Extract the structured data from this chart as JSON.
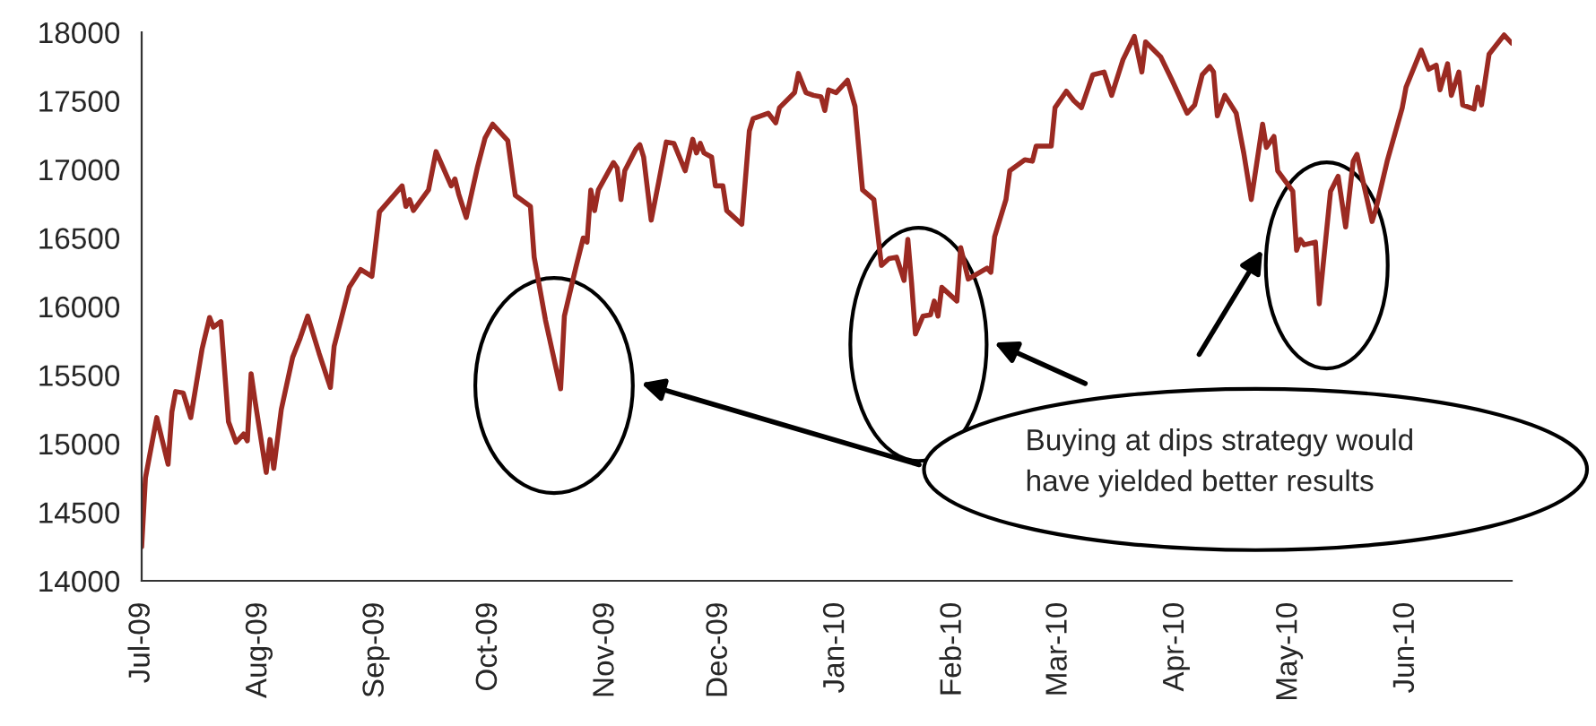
{
  "chart_data": {
    "type": "line",
    "x": [
      "2009-07-01",
      "2009-07-02",
      "2009-07-05",
      "2009-07-08",
      "2009-07-09",
      "2009-07-10",
      "2009-07-12",
      "2009-07-14",
      "2009-07-17",
      "2009-07-19",
      "2009-07-20",
      "2009-07-22",
      "2009-07-24",
      "2009-07-26",
      "2009-07-28",
      "2009-07-29",
      "2009-07-30",
      "2009-07-31",
      "2009-08-03",
      "2009-08-04",
      "2009-08-05",
      "2009-08-07",
      "2009-08-10",
      "2009-08-12",
      "2009-08-14",
      "2009-08-17",
      "2009-08-20",
      "2009-08-21",
      "2009-08-25",
      "2009-08-28",
      "2009-08-31",
      "2009-09-02",
      "2009-09-08",
      "2009-09-09",
      "2009-09-10",
      "2009-09-11",
      "2009-09-15",
      "2009-09-17",
      "2009-09-21",
      "2009-09-22",
      "2009-09-23",
      "2009-09-25",
      "2009-09-28",
      "2009-09-30",
      "2009-10-02",
      "2009-10-06",
      "2009-10-08",
      "2009-10-12",
      "2009-10-13",
      "2009-10-16",
      "2009-10-20",
      "2009-10-21",
      "2009-10-24",
      "2009-10-26",
      "2009-10-27",
      "2009-10-28",
      "2009-10-29",
      "2009-10-30",
      "2009-11-03",
      "2009-11-04",
      "2009-11-05",
      "2009-11-06",
      "2009-11-09",
      "2009-11-10",
      "2009-11-11",
      "2009-11-13",
      "2009-11-15",
      "2009-11-17",
      "2009-11-19",
      "2009-11-22",
      "2009-11-24",
      "2009-11-25",
      "2009-11-26",
      "2009-11-27",
      "2009-11-29",
      "2009-11-30",
      "2009-12-02",
      "2009-12-03",
      "2009-12-07",
      "2009-12-09",
      "2009-12-10",
      "2009-12-14",
      "2009-12-16",
      "2009-12-17",
      "2009-12-21",
      "2009-12-22",
      "2009-12-24",
      "2009-12-26",
      "2009-12-28",
      "2009-12-29",
      "2009-12-30",
      "2010-01-01",
      "2010-01-04",
      "2010-01-06",
      "2010-01-08",
      "2010-01-11",
      "2010-01-13",
      "2010-01-15",
      "2010-01-17",
      "2010-01-19",
      "2010-01-20",
      "2010-01-21",
      "2010-01-22",
      "2010-01-24",
      "2010-01-26",
      "2010-01-27",
      "2010-01-28",
      "2010-01-29",
      "2010-02-02",
      "2010-02-03",
      "2010-02-05",
      "2010-02-10",
      "2010-02-11",
      "2010-02-12",
      "2010-02-15",
      "2010-02-16",
      "2010-02-20",
      "2010-02-22",
      "2010-02-23",
      "2010-02-27",
      "2010-02-28",
      "2010-03-03",
      "2010-03-05",
      "2010-03-07",
      "2010-03-10",
      "2010-03-13",
      "2010-03-15",
      "2010-03-18",
      "2010-03-21",
      "2010-03-23",
      "2010-03-24",
      "2010-03-28",
      "2010-03-31",
      "2010-04-04",
      "2010-04-06",
      "2010-04-08",
      "2010-04-10",
      "2010-04-11",
      "2010-04-12",
      "2010-04-14",
      "2010-04-17",
      "2010-04-19",
      "2010-04-21",
      "2010-04-24",
      "2010-04-25",
      "2010-04-27",
      "2010-04-28",
      "2010-05-02",
      "2010-05-03",
      "2010-05-04",
      "2010-05-05",
      "2010-05-08",
      "2010-05-09",
      "2010-05-12",
      "2010-05-14",
      "2010-05-16",
      "2010-05-18",
      "2010-05-19",
      "2010-05-23",
      "2010-05-24",
      "2010-05-27",
      "2010-05-31",
      "2010-06-01",
      "2010-06-05",
      "2010-06-07",
      "2010-06-09",
      "2010-06-10",
      "2010-06-12",
      "2010-06-13",
      "2010-06-15",
      "2010-06-16",
      "2010-06-19",
      "2010-06-20",
      "2010-06-21",
      "2010-06-23",
      "2010-06-27",
      "2010-06-29"
    ],
    "series": [
      {
        "color": "#9b2a22",
        "values": [
          14250,
          14750,
          15190,
          14850,
          15230,
          15380,
          15370,
          15190,
          15690,
          15920,
          15850,
          15890,
          15160,
          15010,
          15070,
          15020,
          15510,
          15320,
          14790,
          15030,
          14820,
          15250,
          15630,
          15770,
          15930,
          15660,
          15410,
          15710,
          16140,
          16270,
          16220,
          16690,
          16880,
          16730,
          16780,
          16700,
          16850,
          17130,
          16880,
          16930,
          16820,
          16650,
          17020,
          17230,
          17330,
          17210,
          16810,
          16730,
          16360,
          15900,
          15400,
          15930,
          16280,
          16500,
          16470,
          16850,
          16700,
          16850,
          17050,
          17010,
          16780,
          16990,
          17150,
          17180,
          17090,
          16630,
          16910,
          17200,
          17190,
          16990,
          17220,
          17120,
          17190,
          17120,
          17090,
          16880,
          16880,
          16700,
          16600,
          17280,
          17370,
          17410,
          17340,
          17450,
          17560,
          17700,
          17560,
          17540,
          17530,
          17430,
          17580,
          17560,
          17650,
          17460,
          16850,
          16780,
          16300,
          16350,
          16360,
          16190,
          16490,
          16170,
          15800,
          15930,
          15940,
          16040,
          15930,
          16140,
          16040,
          16430,
          16200,
          16280,
          16250,
          16510,
          16780,
          16990,
          17070,
          17060,
          17170,
          17170,
          17450,
          17570,
          17500,
          17450,
          17690,
          17710,
          17540,
          17800,
          17970,
          17710,
          17930,
          17820,
          17650,
          17410,
          17470,
          17690,
          17750,
          17710,
          17390,
          17540,
          17410,
          17120,
          16780,
          17330,
          17160,
          17240,
          16990,
          16840,
          16410,
          16490,
          16450,
          16470,
          16020,
          16840,
          16950,
          16580,
          17060,
          17110,
          16620,
          16710,
          17060,
          17450,
          17600,
          17870,
          17730,
          17760,
          17580,
          17770,
          17540,
          17710,
          17470,
          17440,
          17600,
          17470,
          17840,
          17980,
          17920
        ]
      }
    ],
    "xlim": [
      "2009-07-01",
      "2010-06-29"
    ],
    "xticks": [
      {
        "value": "2009-07-01",
        "label": "Jul-09"
      },
      {
        "value": "2009-08-01",
        "label": "Aug-09"
      },
      {
        "value": "2009-09-01",
        "label": "Sep-09"
      },
      {
        "value": "2009-10-01",
        "label": "Oct-09"
      },
      {
        "value": "2009-11-01",
        "label": "Nov-09"
      },
      {
        "value": "2009-12-01",
        "label": "Dec-09"
      },
      {
        "value": "2010-01-01",
        "label": "Jan-10"
      },
      {
        "value": "2010-02-01",
        "label": "Feb-10"
      },
      {
        "value": "2010-03-01",
        "label": "Mar-10"
      },
      {
        "value": "2010-04-01",
        "label": "Apr-10"
      },
      {
        "value": "2010-05-01",
        "label": "May-10"
      },
      {
        "value": "2010-06-01",
        "label": "Jun-10"
      }
    ],
    "ylim": [
      14000,
      18000
    ],
    "yticks": [
      14000,
      14500,
      15000,
      15500,
      16000,
      16500,
      17000,
      17500,
      18000
    ],
    "grid": false,
    "line_style": "solid",
    "marker": "none",
    "annotations": [
      "Buying at dips strategy would\nhave yielded better results"
    ]
  }
}
